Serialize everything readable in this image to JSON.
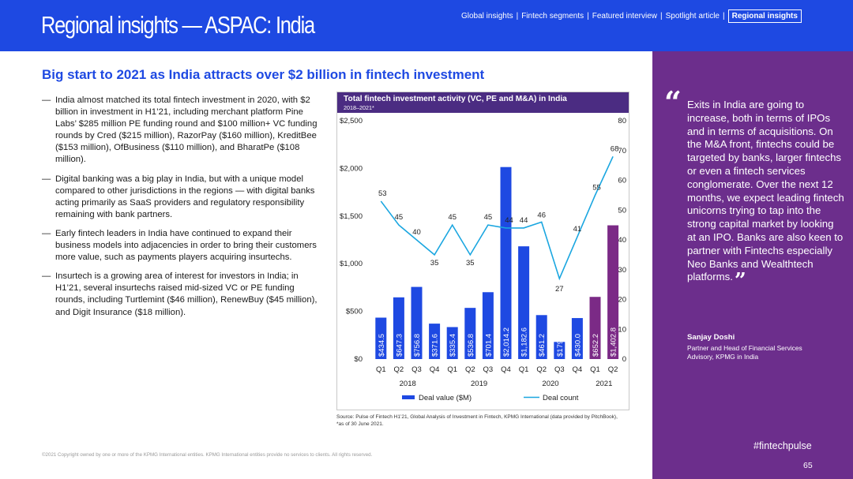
{
  "header": {
    "title": "Regional insights — ASPAC: India",
    "nav": [
      "Global insights",
      "Fintech segments",
      "Featured interview",
      "Spotlight article",
      "Regional insights"
    ],
    "active_nav": "Regional insights"
  },
  "headline": "Big start to 2021 as India attracts over $2 billion in fintech investment",
  "bullets": [
    "India almost matched its total fintech investment in 2020, with $2 billion in investment in H1’21, including merchant platform Pine Labs’ $285 million PE funding round and $100 million+ VC funding rounds by Cred ($215 million), RazorPay ($160 million), KreditBee ($153 million), OfBusiness ($110 million), and BharatPe ($108 million).",
    "Digital banking was a big play in India, but with a unique model compared to other jurisdictions in the regions — with digital banks acting primarily as SaaS providers and regulatory responsibility remaining with bank partners.",
    "Early fintech leaders in India have continued to expand their business models into adjacencies in order to bring their customers more value, such as payments players acquiring insurtechs.",
    "Insurtech is a growing area of interest for investors in India; in H1’21, several insurtechs raised mid-sized VC or PE funding rounds, including Turtlemint ($46 million), RenewBuy ($45 million), and Digit Insurance ($18 million)."
  ],
  "bullet_marker": "—",
  "chart_data": {
    "type": "bar+line",
    "title": "Total fintech investment activity (VC, PE and M&A) in India",
    "subtitle": "2018–2021*",
    "categories": [
      "Q1",
      "Q2",
      "Q3",
      "Q4",
      "Q1",
      "Q2",
      "Q3",
      "Q4",
      "Q1",
      "Q2",
      "Q3",
      "Q4",
      "Q1",
      "Q2"
    ],
    "years": [
      {
        "label": "2018",
        "quarters": 4
      },
      {
        "label": "2019",
        "quarters": 4
      },
      {
        "label": "2020",
        "quarters": 4
      },
      {
        "label": "2021",
        "quarters": 2
      }
    ],
    "series": [
      {
        "name": "Deal value ($M)",
        "type": "bar",
        "axis": "left",
        "values": [
          434.5,
          647.3,
          756.8,
          371.6,
          335.4,
          536.8,
          701.4,
          2014.2,
          1182.6,
          461.2,
          179.8,
          430.0,
          652.2,
          1402.8
        ],
        "labels": [
          "$434.5",
          "$647.3",
          "$756.8",
          "$371.6",
          "$335.4",
          "$536.8",
          "$701.4",
          "$2,014.2",
          "$1,182.6",
          "$461.2",
          "$179.8",
          "$430.0",
          "$652.2",
          "$1,402.8"
        ]
      },
      {
        "name": "Deal count",
        "type": "line",
        "axis": "right",
        "values": [
          53,
          45,
          40,
          35,
          45,
          35,
          45,
          44,
          44,
          46,
          27,
          41,
          55,
          68
        ]
      }
    ],
    "left_axis": {
      "min": 0,
      "max": 2500,
      "ticks": [
        0,
        500,
        1000,
        1500,
        2000,
        2500
      ],
      "tick_labels": [
        "$0",
        "$500",
        "$1,000",
        "$1,500",
        "$2,000",
        "$2,500"
      ]
    },
    "right_axis": {
      "min": 0,
      "max": 80,
      "ticks": [
        0,
        10,
        20,
        30,
        40,
        50,
        60,
        70,
        80
      ],
      "tick_labels": [
        "0",
        "10",
        "20",
        "30",
        "40",
        "50",
        "60",
        "70",
        "80"
      ]
    },
    "colors": {
      "bar_2018_2020": "#1e49e2",
      "bar_2021": "#7b2a86",
      "line": "#1aa6e0",
      "header": "#4b2c82"
    },
    "legend": {
      "position": "bottom"
    }
  },
  "source": "Source: Pulse of Fintech H1’21, Global Analysis of Investment in Fintech, KPMG International (data provided by PitchBook), *as of 30 June 2021.",
  "quote": {
    "open_mark": "“",
    "close_mark": "”",
    "text": "Exits in India are going to increase, both in terms of IPOs and in terms of acquisitions. On the M&A front, fintechs could be targeted by banks, larger fintechs or even a fintech services conglomerate. Over the next 12 months, we expect leading fintech unicorns trying to tap into the strong capital market by looking at an IPO. Banks are also keen to partner with Fintechs especially Neo Banks and Wealthtech platforms.",
    "name": "Sanjay Doshi",
    "role": "Partner and Head of Financial Services Advisory, KPMG in India"
  },
  "footer": {
    "copyright": "©2021 Copyright owned by one or more of the KPMG International entities. KPMG International entities provide no services to clients. All rights reserved.",
    "hashtag": "#fintechpulse",
    "page": "65"
  },
  "colors": {
    "brand_blue": "#1e49e2",
    "purple": "#6c2e8c"
  }
}
